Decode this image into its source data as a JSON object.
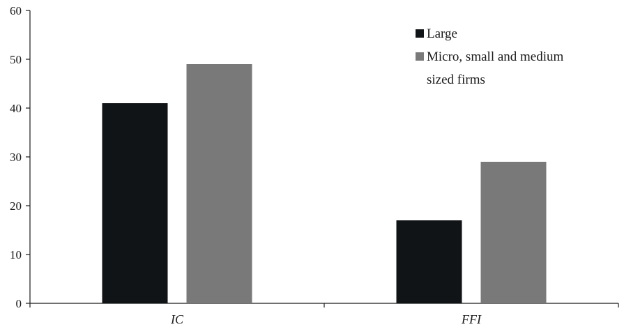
{
  "chart_data": {
    "type": "bar",
    "title": "",
    "xlabel": "",
    "ylabel": "",
    "categories": [
      "IC",
      "FFI"
    ],
    "series": [
      {
        "name": "Large",
        "values": [
          41,
          17
        ],
        "color": "#111416"
      },
      {
        "name": "Micro, small and medium sized firms",
        "values": [
          49,
          29
        ],
        "color": "#797979"
      }
    ],
    "ylim": [
      0,
      60
    ],
    "yticks": [
      "0",
      "10",
      "20",
      "30",
      "40",
      "50",
      "60"
    ],
    "grid": false,
    "legend_position": "top-right"
  },
  "legend": {
    "large_label": "Large",
    "msme_label_line1": "Micro, small and medium",
    "msme_label_line2": "sized firms"
  }
}
